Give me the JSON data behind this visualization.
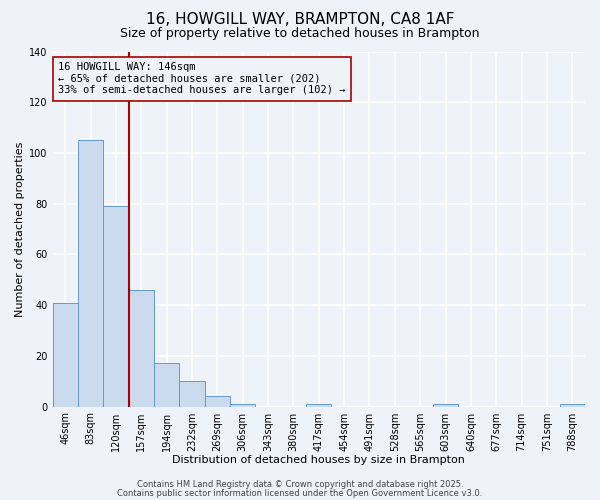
{
  "title": "16, HOWGILL WAY, BRAMPTON, CA8 1AF",
  "subtitle": "Size of property relative to detached houses in Brampton",
  "xlabel": "Distribution of detached houses by size in Brampton",
  "ylabel": "Number of detached properties",
  "bar_labels": [
    "46sqm",
    "83sqm",
    "120sqm",
    "157sqm",
    "194sqm",
    "232sqm",
    "269sqm",
    "306sqm",
    "343sqm",
    "380sqm",
    "417sqm",
    "454sqm",
    "491sqm",
    "528sqm",
    "565sqm",
    "603sqm",
    "640sqm",
    "677sqm",
    "714sqm",
    "751sqm",
    "788sqm"
  ],
  "bar_values": [
    41,
    105,
    79,
    46,
    17,
    10,
    4,
    1,
    0,
    0,
    1,
    0,
    0,
    0,
    0,
    1,
    0,
    0,
    0,
    0,
    1
  ],
  "bar_color": "#ccdaee",
  "bar_edge_color": "#6699cc",
  "vline_x": 2.5,
  "vline_color": "#aa0000",
  "annotation_text_line1": "16 HOWGILL WAY: 146sqm",
  "annotation_text_line2": "← 65% of detached houses are smaller (202)",
  "annotation_text_line3": "33% of semi-detached houses are larger (102) →",
  "ylim": [
    0,
    140
  ],
  "yticks": [
    0,
    20,
    40,
    60,
    80,
    100,
    120,
    140
  ],
  "footer_line1": "Contains HM Land Registry data © Crown copyright and database right 2025.",
  "footer_line2": "Contains public sector information licensed under the Open Government Licence v3.0.",
  "background_color": "#eef2f9",
  "grid_color": "#ffffff",
  "title_fontsize": 11,
  "subtitle_fontsize": 9,
  "axis_label_fontsize": 8,
  "tick_fontsize": 7,
  "annotation_fontsize": 7.5,
  "footer_fontsize": 6
}
